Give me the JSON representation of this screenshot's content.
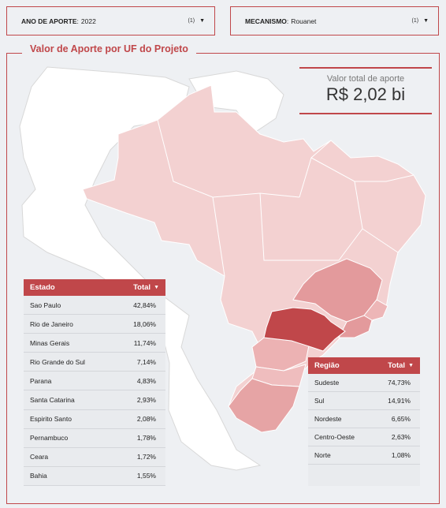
{
  "filters": {
    "ano": {
      "label": "ANO DE APORTE",
      "value": "2022",
      "count": "(1)"
    },
    "mecanismo": {
      "label": "MECANISMO",
      "value": "Rouanet",
      "count": "(1)"
    }
  },
  "panel": {
    "title": "Valor de Aporte por UF do Projeto"
  },
  "kpi": {
    "label": "Valor total de aporte",
    "value": "R$ 2,02 bi"
  },
  "estado_table": {
    "col1": "Estado",
    "col2": "Total",
    "rows": [
      {
        "name": "Sao Paulo",
        "value": "42,84%"
      },
      {
        "name": "Rio de Janeiro",
        "value": "18,06%"
      },
      {
        "name": "Minas Gerais",
        "value": "11,74%"
      },
      {
        "name": "Rio Grande do Sul",
        "value": "7,14%"
      },
      {
        "name": "Parana",
        "value": "4,83%"
      },
      {
        "name": "Santa Catarina",
        "value": "2,93%"
      },
      {
        "name": "Espirito Santo",
        "value": "2,08%"
      },
      {
        "name": "Pernambuco",
        "value": "1,78%"
      },
      {
        "name": "Ceara",
        "value": "1,72%"
      },
      {
        "name": "Bahia",
        "value": "1,55%"
      }
    ]
  },
  "regiao_table": {
    "col1": "Região",
    "col2": "Total",
    "rows": [
      {
        "name": "Sudeste",
        "value": "74,73%"
      },
      {
        "name": "Sul",
        "value": "14,91%"
      },
      {
        "name": "Nordeste",
        "value": "6,65%"
      },
      {
        "name": "Centro-Oeste",
        "value": "2,63%"
      },
      {
        "name": "Norte",
        "value": "1,08%"
      }
    ]
  },
  "colors": {
    "accent": "#c0474a",
    "state_strong": "#c0474a",
    "state_medium": "#e39a9c",
    "state_light": "#f3d1d1",
    "neighbor_fill": "#ffffff"
  }
}
